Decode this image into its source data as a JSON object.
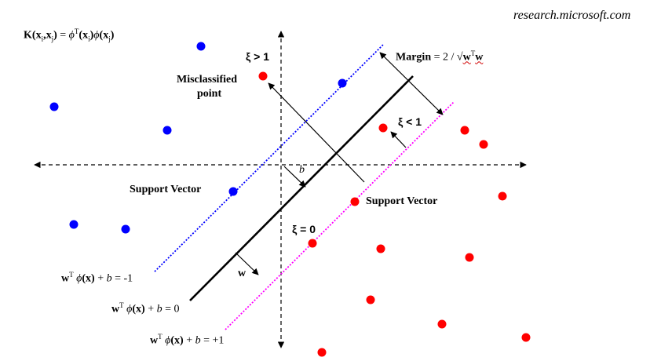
{
  "credit": "research.microsoft.com",
  "kernel": {
    "lhs_K": "K(",
    "x_i": "x",
    "sub_i": "i",
    "comma": ",",
    "x_j": "x",
    "sub_j": "j",
    "close": ")",
    "eq": " = ",
    "phi1": "ϕ",
    "sup_T": "T",
    "arg_i": "(x",
    "arg_i_sub": "i",
    "arg_i_close": ")",
    "phi2": "ϕ",
    "arg_j": "(x",
    "arg_j_sub": "j",
    "arg_j_close": ")"
  },
  "labels": {
    "xi_gt": "ξ > 1",
    "xi_lt": "ξ < 1",
    "xi_eq": "ξ = 0",
    "misclassified": "Misclassified",
    "misclassified_2": "point",
    "support_left": "Support Vector",
    "support_right": "Support Vector",
    "b": "b",
    "w": "w",
    "margin_word": "Margin",
    "margin_expr": " = 2 / √",
    "margin_w1": "w",
    "margin_T": "T",
    "margin_w2": "w"
  },
  "equations": {
    "minus1": {
      "w": "w",
      "T": "T",
      "phi": " ϕ",
      "x": "(x)",
      "plus": " + ",
      "b": "b",
      "rhs": " = -1"
    },
    "zero": {
      "w": "w",
      "T": "T",
      "phi": " ϕ",
      "x": "(x)",
      "plus": " + ",
      "b": "b",
      "rhs": " = 0"
    },
    "plus1": {
      "w": "w",
      "T": "T",
      "phi": " ϕ",
      "x": "(x)",
      "plus": " + ",
      "b": "b",
      "rhs": " = +1"
    }
  },
  "colors": {
    "class_negative": "#0000ff",
    "class_positive": "#ff0000",
    "margin_negative_line": "#0000ff",
    "margin_positive_line": "#ff00ff",
    "hyperplane": "#000000"
  }
}
